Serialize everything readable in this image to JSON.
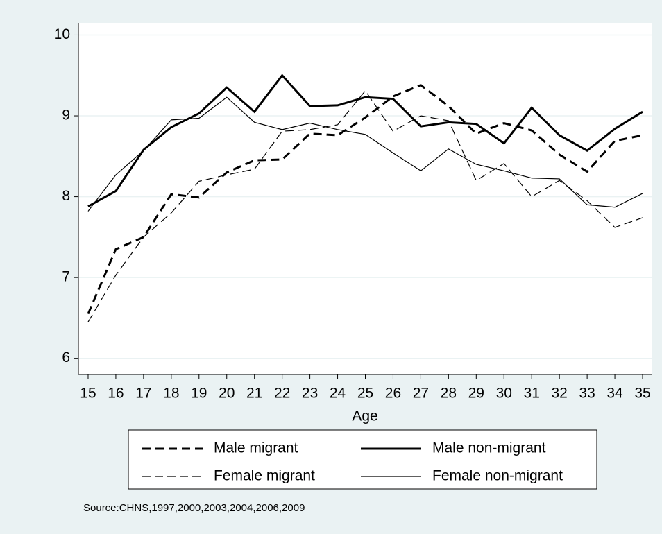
{
  "chart_data": {
    "type": "line",
    "x_label": "Age",
    "note": "Source:CHNS,1997,2000,2003,2004,2006,2009",
    "x": [
      15,
      16,
      17,
      18,
      19,
      20,
      21,
      22,
      23,
      24,
      25,
      26,
      27,
      28,
      29,
      30,
      31,
      32,
      33,
      34,
      35
    ],
    "xlim": [
      14.65,
      35.35
    ],
    "xticks": [
      15,
      16,
      17,
      18,
      19,
      20,
      21,
      22,
      23,
      24,
      25,
      26,
      27,
      28,
      29,
      30,
      31,
      32,
      33,
      34,
      35
    ],
    "ylim": [
      5.8,
      10.15
    ],
    "yticks": [
      6,
      7,
      8,
      9,
      10
    ],
    "grid": true,
    "series": [
      {
        "name": "Male migrant",
        "color": "#000000",
        "line_width": 3,
        "dashed": true,
        "values": [
          6.55,
          7.35,
          7.5,
          8.03,
          7.99,
          8.3,
          8.45,
          8.46,
          8.78,
          8.76,
          8.98,
          9.24,
          9.38,
          9.12,
          8.78,
          8.91,
          8.82,
          8.52,
          8.31,
          8.69,
          8.76
        ]
      },
      {
        "name": "Male non-migrant",
        "color": "#000000",
        "line_width": 3,
        "dashed": false,
        "values": [
          7.88,
          8.07,
          8.58,
          8.86,
          9.03,
          9.35,
          9.05,
          9.5,
          9.12,
          9.13,
          9.23,
          9.21,
          8.87,
          8.92,
          8.9,
          8.66,
          9.1,
          8.76,
          8.57,
          8.84,
          9.05
        ]
      },
      {
        "name": "Female migrant",
        "color": "#000000",
        "line_width": 1.2,
        "dashed": true,
        "values": [
          6.45,
          7.03,
          7.5,
          7.8,
          8.19,
          8.27,
          8.34,
          8.81,
          8.83,
          8.89,
          9.31,
          8.81,
          9.0,
          8.94,
          8.2,
          8.41,
          8.0,
          8.2,
          7.95,
          7.62,
          7.74
        ]
      },
      {
        "name": "Female non-migrant",
        "color": "#000000",
        "line_width": 1.2,
        "dashed": false,
        "values": [
          7.82,
          8.27,
          8.57,
          8.95,
          8.97,
          9.23,
          8.92,
          8.83,
          8.91,
          8.83,
          8.77,
          8.54,
          8.32,
          8.59,
          8.4,
          8.32,
          8.23,
          8.22,
          7.9,
          7.87,
          8.04
        ]
      }
    ]
  }
}
